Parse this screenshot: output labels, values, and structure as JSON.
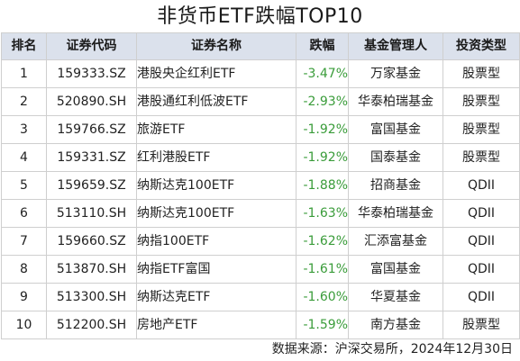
{
  "title": "非货币ETF跌幅TOP10",
  "table": {
    "headers": {
      "rank": "排名",
      "code": "证券代码",
      "name": "证券名称",
      "change": "跌幅",
      "manager": "基金管理人",
      "type": "投资类型"
    },
    "rows": [
      {
        "rank": "1",
        "code": "159333.SZ",
        "name": "港股央企红利ETF",
        "change": "-3.47%",
        "manager": "万家基金",
        "type": "股票型"
      },
      {
        "rank": "2",
        "code": "520890.SH",
        "name": "港股通红利低波ETF",
        "change": "-2.93%",
        "manager": "华泰柏瑞基金",
        "type": "股票型"
      },
      {
        "rank": "3",
        "code": "159766.SZ",
        "name": "旅游ETF",
        "change": "-1.92%",
        "manager": "富国基金",
        "type": "股票型"
      },
      {
        "rank": "4",
        "code": "159331.SZ",
        "name": "红利港股ETF",
        "change": "-1.92%",
        "manager": "国泰基金",
        "type": "股票型"
      },
      {
        "rank": "5",
        "code": "159659.SZ",
        "name": "纳斯达克100ETF",
        "change": "-1.88%",
        "manager": "招商基金",
        "type": "QDII"
      },
      {
        "rank": "6",
        "code": "513110.SH",
        "name": "纳斯达克100ETF",
        "change": "-1.63%",
        "manager": "华泰柏瑞基金",
        "type": "QDII"
      },
      {
        "rank": "7",
        "code": "159660.SZ",
        "name": "纳指100ETF",
        "change": "-1.62%",
        "manager": "汇添富基金",
        "type": "QDII"
      },
      {
        "rank": "8",
        "code": "513870.SH",
        "name": "纳指ETF富国",
        "change": "-1.61%",
        "manager": "富国基金",
        "type": "QDII"
      },
      {
        "rank": "9",
        "code": "513300.SH",
        "name": "纳斯达克ETF",
        "change": "-1.60%",
        "manager": "华夏基金",
        "type": "QDII"
      },
      {
        "rank": "10",
        "code": "512200.SH",
        "name": "房地产ETF",
        "change": "-1.59%",
        "manager": "南方基金",
        "type": "股票型"
      }
    ]
  },
  "source": "数据来源：沪深交易所，2024年12月30日",
  "colors": {
    "header_bg": "#dbe1ec",
    "negative_change": "#3a9c3a",
    "border": "#cfcfcf"
  }
}
